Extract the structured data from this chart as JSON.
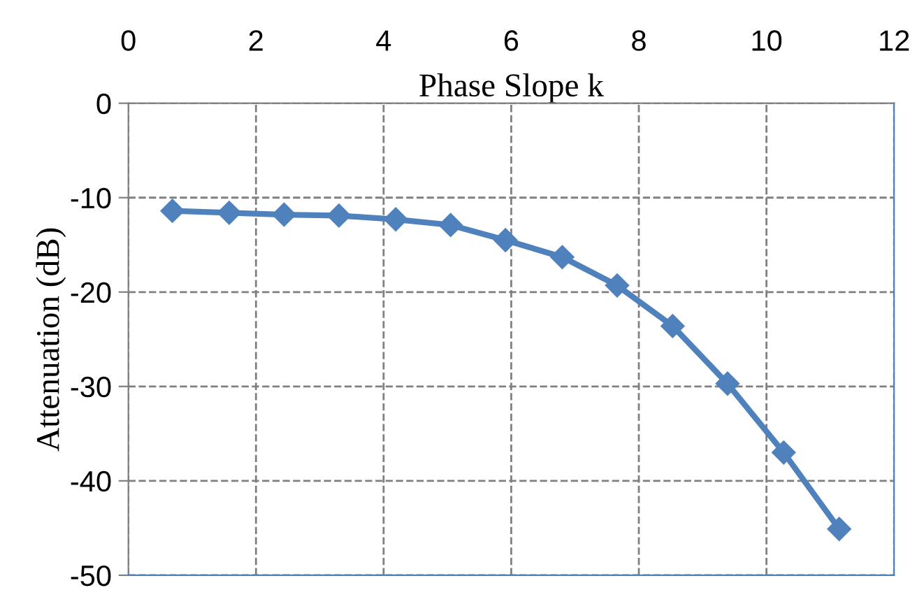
{
  "chart_data": {
    "type": "line",
    "xlabel": "Phase Slope k",
    "ylabel": "Attenuation (dB)",
    "xlim": [
      0,
      12
    ],
    "xticks": [
      0,
      2,
      4,
      6,
      8,
      10,
      12
    ],
    "ylim": [
      -50,
      0
    ],
    "yticks": [
      -50,
      -40,
      -30,
      -20,
      -10,
      0
    ],
    "grid": true,
    "marker": "diamond",
    "line_style": "solid",
    "series": [
      {
        "color": "#4f81bd",
        "x": [
          0.69,
          1.58,
          2.44,
          3.3,
          4.19,
          5.05,
          5.91,
          6.8,
          7.66,
          8.53,
          9.39,
          10.27,
          11.14
        ],
        "values": [
          -11.4,
          -11.6,
          -11.8,
          -11.9,
          -12.3,
          -12.9,
          -14.5,
          -16.3,
          -19.3,
          -23.6,
          -29.7,
          -37.0,
          -45.1
        ]
      }
    ]
  }
}
